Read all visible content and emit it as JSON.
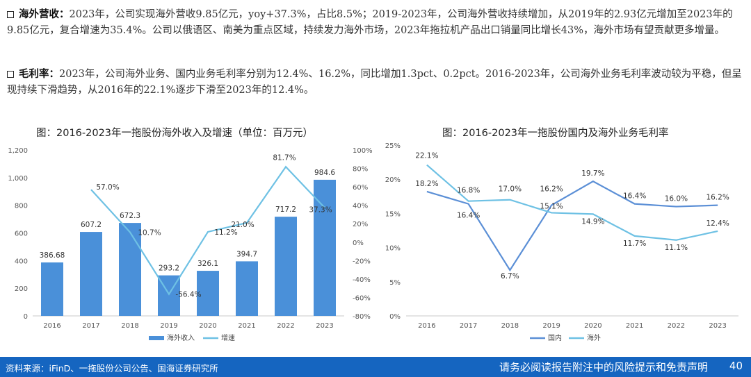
{
  "paragraphs": [
    {
      "head": "海外营收：",
      "text": "2023年，公司实现海外营收9.85亿元，yoy+37.3%，占比8.5%；2019-2023年，公司海外营收持续增加，从2019年的2.93亿元增加至2023年的9.85亿元，复合增速为35.4%。公司以俄语区、南美为重点区域，持续发力海外市场，2023年拖拉机产品出口销量同比增长43%，海外市场有望贡献更多增量。"
    },
    {
      "head": "毛利率：",
      "text": "2023年，公司海外业务、国内业务毛利率分别为12.4%、16.2%，同比增加1.3pct、0.2pct。2016-2023年，公司海外业务毛利率波动较为平稳，但呈现持续下滑趋势，从2016年的22.1%逐步下滑至2023年的12.4%。"
    }
  ],
  "chart_data": [
    {
      "type": "bar",
      "title": "图：2016-2023年一拖股份海外收入及增速（单位：百万元）",
      "categories": [
        "2016",
        "2017",
        "2018",
        "2019",
        "2020",
        "2021",
        "2022",
        "2023"
      ],
      "series": [
        {
          "name": "海外收入",
          "type": "bar",
          "values": [
            386.68,
            607.2,
            672.3,
            293.2,
            326.1,
            394.7,
            717.2,
            984.6
          ],
          "labels": [
            "386.68",
            "607.2",
            "672.3",
            "293.2",
            "326.1",
            "394.7",
            "717.2",
            "984.6"
          ],
          "color": "#4a90d9"
        },
        {
          "name": "增速",
          "type": "line",
          "values": [
            null,
            57.0,
            10.7,
            -56.4,
            11.2,
            21.0,
            81.7,
            37.3
          ],
          "labels": [
            "",
            "57.0%",
            "10.7%",
            "-56.4%",
            "11.2%",
            "21.0%",
            "81.7%",
            "37.3%"
          ],
          "color": "#6ec1e4"
        }
      ],
      "y_left": {
        "min": 0,
        "max": 1200,
        "ticks": [
          "0",
          "200",
          "400",
          "600",
          "800",
          "1,000",
          "1,200"
        ]
      },
      "y_right": {
        "min": -80,
        "max": 100,
        "ticks": [
          "-80%",
          "-60%",
          "-40%",
          "-20%",
          "0%",
          "20%",
          "40%",
          "60%",
          "80%",
          "100%"
        ]
      },
      "legend": "bottom"
    },
    {
      "type": "line",
      "title": "图：2016-2023年一拖股份国内及海外业务毛利率",
      "categories": [
        "2016",
        "2017",
        "2018",
        "2019",
        "2020",
        "2021",
        "2022",
        "2023"
      ],
      "series": [
        {
          "name": "国内",
          "values": [
            18.2,
            16.4,
            6.7,
            16.2,
            19.7,
            16.4,
            16.0,
            16.2
          ],
          "labels": [
            "18.2%",
            "16.4%",
            "6.7%",
            "16.2%",
            "19.7%",
            "16.4%",
            "16.0%",
            "16.2%"
          ],
          "color": "#5b8fd6"
        },
        {
          "name": "海外",
          "values": [
            22.1,
            16.8,
            17.0,
            15.1,
            14.9,
            11.7,
            11.1,
            12.4
          ],
          "labels": [
            "22.1%",
            "16.8%",
            "17.0%",
            "15.1%",
            "14.9%",
            "11.7%",
            "11.1%",
            "12.4%"
          ],
          "color": "#6ec1e4"
        }
      ],
      "y": {
        "min": 0,
        "max": 25,
        "ticks": [
          "0%",
          "5%",
          "10%",
          "15%",
          "20%",
          "25%"
        ]
      },
      "legend": "bottom"
    }
  ],
  "footer": {
    "source": "资料来源：iFinD、一拖股份公司公告、国海证券研究所",
    "disclaimer": "请务必阅读报告附注中的风险提示和免责声明",
    "page": "40"
  }
}
